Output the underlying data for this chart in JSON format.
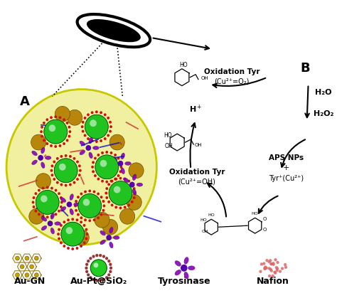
{
  "bg_color": "#ffffff",
  "label_A": "A",
  "label_B": "B",
  "legend_labels": [
    "Au-GN",
    "Au-Pt@SiO₂",
    "Tyrosinase",
    "Nafion"
  ],
  "text_oxidation_tyr1": "Oxidation Tyr",
  "text_cu2_o2": "(Cu²⁺=O₂)",
  "text_H_plus": "H⁺",
  "text_oxidation_tyr2": "Oxidation Tyr",
  "text_cu2_oh": "(Cu²⁺=OH)",
  "text_H2O": "H₂O",
  "text_H2O2": "H₂O₂",
  "text_APS_NPs": "APS NPs",
  "text_plus": "+",
  "text_Tyr_cu": "Tyr⁺(Cu²⁺)"
}
